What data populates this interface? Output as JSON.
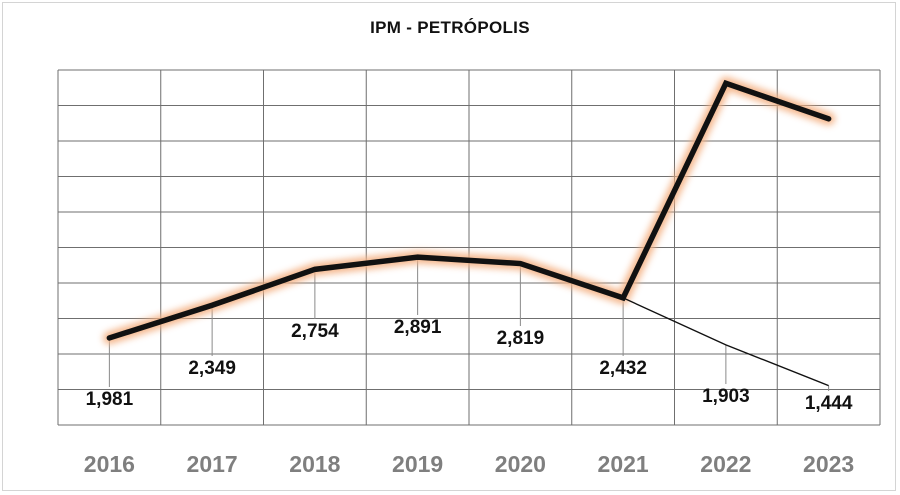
{
  "chart_data": {
    "type": "line",
    "title": "IPM - PETRÓPOLIS",
    "xlabel": "",
    "ylabel": "",
    "categories": [
      "2016",
      "2017",
      "2018",
      "2019",
      "2020",
      "2021",
      "2022",
      "2023"
    ],
    "series": [
      {
        "values": [
          1.981,
          2.349,
          2.754,
          2.891,
          2.819,
          2.432,
          4.85,
          4.45
        ],
        "style": "bold-glow"
      },
      {
        "values": [
          null,
          null,
          null,
          null,
          null,
          2.432,
          1.903,
          1.444
        ],
        "style": "thin"
      }
    ],
    "data_labels": [
      "1,981",
      "2,349",
      "2,754",
      "2,891",
      "2,819",
      "2,432",
      "1,903",
      "1,444"
    ],
    "ylim": [
      1.0,
      5.0
    ],
    "grid": true,
    "legend": "none",
    "colors": {
      "line": "#111111",
      "glow": "#f4b183",
      "grid": "#6f6f6f",
      "axis_labels": "#7f7f7f",
      "labels": "#111111"
    }
  }
}
